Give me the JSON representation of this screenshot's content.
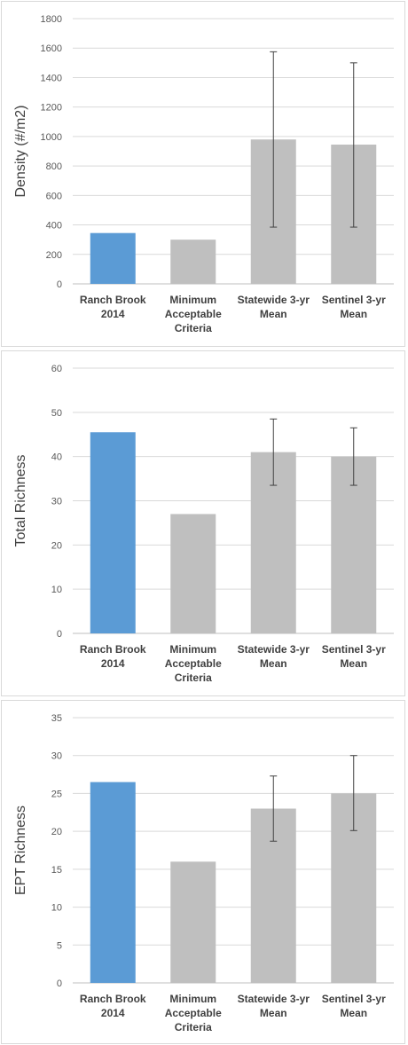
{
  "chart_data": [
    {
      "type": "bar",
      "categories": [
        [
          "Ranch Brook",
          "2014"
        ],
        [
          "Minimum",
          "Acceptable",
          "Criteria"
        ],
        [
          "Statewide 3-yr",
          "Mean"
        ],
        [
          "Sentinel 3-yr",
          "Mean"
        ]
      ],
      "values": [
        345,
        300,
        980,
        945
      ],
      "error_bars": [
        null,
        null,
        [
          385,
          1575
        ],
        [
          385,
          1500
        ]
      ],
      "bar_colors": [
        "#5b9bd5",
        "#bfbfbf",
        "#bfbfbf",
        "#bfbfbf"
      ],
      "ylabel": "Density (#/m2)",
      "ylim": [
        0,
        1800
      ],
      "yticks": [
        0,
        200,
        400,
        600,
        800,
        1000,
        1200,
        1400,
        1600,
        1800
      ],
      "grid": true
    },
    {
      "type": "bar",
      "categories": [
        [
          "Ranch Brook",
          "2014"
        ],
        [
          "Minimum",
          "Acceptable",
          "Criteria"
        ],
        [
          "Statewide 3-yr",
          "Mean"
        ],
        [
          "Sentinel 3-yr",
          "Mean"
        ]
      ],
      "values": [
        45.5,
        27,
        41,
        40
      ],
      "error_bars": [
        null,
        null,
        [
          33.5,
          48.5
        ],
        [
          33.5,
          46.5
        ]
      ],
      "bar_colors": [
        "#5b9bd5",
        "#bfbfbf",
        "#bfbfbf",
        "#bfbfbf"
      ],
      "ylabel": "Total Richness",
      "ylim": [
        0,
        60
      ],
      "yticks": [
        0,
        10,
        20,
        30,
        40,
        50,
        60
      ],
      "grid": true
    },
    {
      "type": "bar",
      "categories": [
        [
          "Ranch Brook",
          "2014"
        ],
        [
          "Minimum",
          "Acceptable",
          "Criteria"
        ],
        [
          "Statewide 3-yr",
          "Mean"
        ],
        [
          "Sentinel 3-yr",
          "Mean"
        ]
      ],
      "values": [
        26.5,
        16,
        23,
        25
      ],
      "error_bars": [
        null,
        null,
        [
          18.7,
          27.3
        ],
        [
          20.1,
          30
        ]
      ],
      "bar_colors": [
        "#5b9bd5",
        "#bfbfbf",
        "#bfbfbf",
        "#bfbfbf"
      ],
      "ylabel": "EPT Richness",
      "ylim": [
        0,
        35
      ],
      "yticks": [
        0,
        5,
        10,
        15,
        20,
        25,
        30,
        35
      ],
      "grid": true
    }
  ]
}
